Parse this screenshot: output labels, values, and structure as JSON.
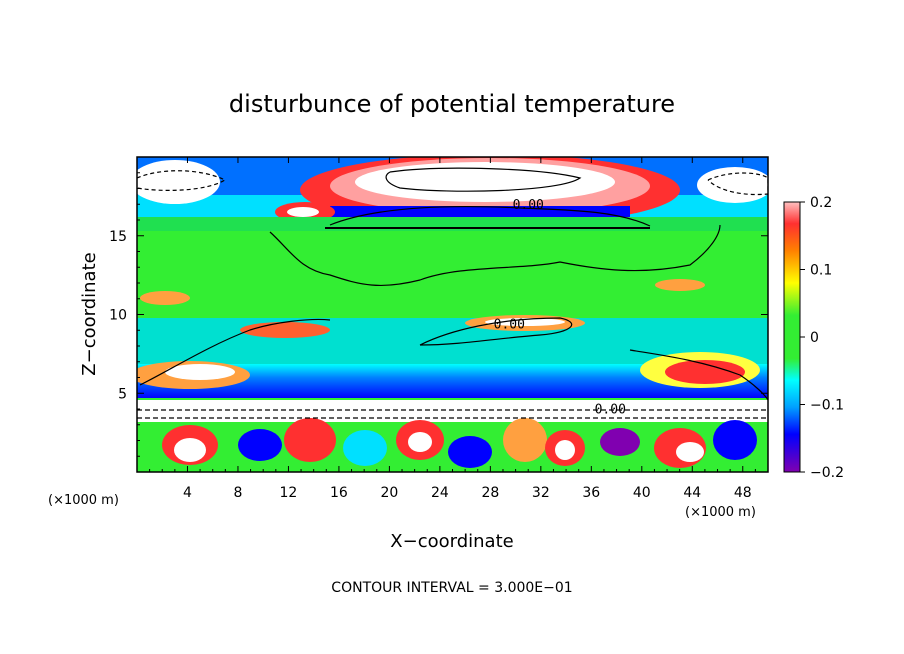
{
  "chart_data": {
    "type": "heatmap",
    "title": "disturbunce of potential temperature",
    "xlabel": "X−coordinate",
    "ylabel": "Z−coordinate",
    "x_unit_left": "(×1000 m)",
    "x_unit_right": "(×1000 m)",
    "footer": "CONTOUR INTERVAL = 3.000E−01",
    "xlim": [
      0,
      50
    ],
    "ylim": [
      0,
      20
    ],
    "x_ticks": [
      "4",
      "8",
      "12",
      "16",
      "20",
      "24",
      "28",
      "32",
      "36",
      "40",
      "44",
      "48"
    ],
    "x_tick_values": [
      4,
      8,
      12,
      16,
      20,
      24,
      28,
      32,
      36,
      40,
      44,
      48
    ],
    "y_ticks": [
      "5",
      "10",
      "15"
    ],
    "y_tick_values": [
      5,
      10,
      15
    ],
    "colorbar": {
      "min": -0.2,
      "max": 0.2,
      "tick_labels": [
        "0.2",
        "0.1",
        "0",
        "−0.1",
        "−0.2"
      ],
      "tick_values": [
        0.2,
        0.1,
        0,
        -0.1,
        -0.2
      ]
    },
    "contour_labels": [
      {
        "text": "0.00",
        "x": 31,
        "y": 16.7
      },
      {
        "text": "0.00",
        "x": 29.5,
        "y": 9.1
      },
      {
        "text": "0.00",
        "x": 37.5,
        "y": 3.7
      }
    ],
    "colors": {
      "deep_negative": "#8000b0",
      "negative": "#0000ff",
      "weak_negative": "#00ffff",
      "zero": "#33ee33",
      "weak_positive": "#ffff00",
      "positive": "#ff0000",
      "strong_positive": "#ffffff"
    }
  }
}
